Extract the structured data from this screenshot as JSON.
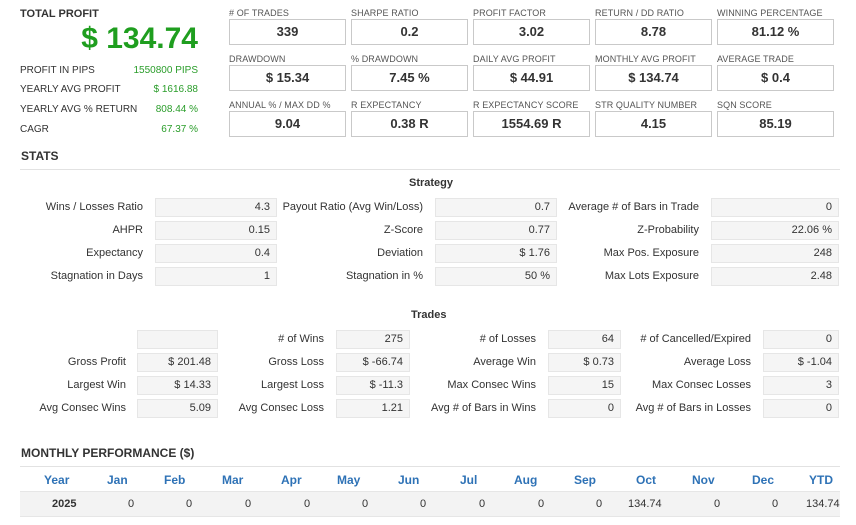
{
  "summary": {
    "title": "TOTAL PROFIT",
    "total": "$ 134.74",
    "rows": [
      {
        "label": "PROFIT IN PIPS",
        "value": "1550800 PIPS"
      },
      {
        "label": "YEARLY AVG PROFIT",
        "value": "$ 1616.88"
      },
      {
        "label": "YEARLY AVG % RETURN",
        "value": "808.44 %"
      },
      {
        "label": "CAGR",
        "value": "67.37 %"
      }
    ]
  },
  "metrics": [
    {
      "label": "# OF TRADES",
      "value": "339"
    },
    {
      "label": "SHARPE RATIO",
      "value": "0.2"
    },
    {
      "label": "PROFIT FACTOR",
      "value": "3.02"
    },
    {
      "label": "RETURN / DD RATIO",
      "value": "8.78"
    },
    {
      "label": "WINNING PERCENTAGE",
      "value": "81.12 %"
    },
    {
      "label": "DRAWDOWN",
      "value": "$ 15.34"
    },
    {
      "label": "% DRAWDOWN",
      "value": "7.45 %"
    },
    {
      "label": "DAILY AVG PROFIT",
      "value": "$ 44.91"
    },
    {
      "label": "MONTHLY AVG PROFIT",
      "value": "$ 134.74"
    },
    {
      "label": "AVERAGE TRADE",
      "value": "$ 0.4"
    },
    {
      "label": "ANNUAL % / MAX DD %",
      "value": "9.04"
    },
    {
      "label": "R EXPECTANCY",
      "value": "0.38 R"
    },
    {
      "label": "R EXPECTANCY SCORE",
      "value": "1554.69 R"
    },
    {
      "label": "STR QUALITY NUMBER",
      "value": "4.15"
    },
    {
      "label": "SQN SCORE",
      "value": "85.19"
    }
  ],
  "stats": {
    "title": "STATS",
    "strategy": {
      "title": "Strategy",
      "col1": [
        {
          "label": "Wins / Losses Ratio",
          "value": "4.3"
        },
        {
          "label": "AHPR",
          "value": "0.15"
        },
        {
          "label": "Expectancy",
          "value": "0.4"
        },
        {
          "label": "Stagnation in Days",
          "value": "1"
        }
      ],
      "col2": [
        {
          "label": "Payout Ratio (Avg Win/Loss)",
          "value": "0.7"
        },
        {
          "label": "Z-Score",
          "value": "0.77"
        },
        {
          "label": "Deviation",
          "value": "$ 1.76"
        },
        {
          "label": "Stagnation in %",
          "value": "50 %"
        }
      ],
      "col3": [
        {
          "label": "Average # of Bars in Trade",
          "value": "0"
        },
        {
          "label": "Z-Probability",
          "value": "22.06 %"
        },
        {
          "label": "Max Pos. Exposure",
          "value": "248"
        },
        {
          "label": "Max Lots Exposure",
          "value": "2.48"
        }
      ]
    },
    "trades": {
      "title": "Trades",
      "col1": [
        {
          "label": "",
          "value": ""
        },
        {
          "label": "Gross Profit",
          "value": "$ 201.48"
        },
        {
          "label": "Largest Win",
          "value": "$ 14.33"
        },
        {
          "label": "Avg Consec Wins",
          "value": "5.09"
        }
      ],
      "col2": [
        {
          "label": "# of Wins",
          "value": "275"
        },
        {
          "label": "Gross Loss",
          "value": "$ -66.74"
        },
        {
          "label": "Largest Loss",
          "value": "$ -11.3"
        },
        {
          "label": "Avg Consec Loss",
          "value": "1.21"
        }
      ],
      "col3": [
        {
          "label": "# of Losses",
          "value": "64"
        },
        {
          "label": "Average Win",
          "value": "$ 0.73"
        },
        {
          "label": "Max Consec Wins",
          "value": "15"
        },
        {
          "label": "Avg # of Bars in Wins",
          "value": "0"
        }
      ],
      "col4": [
        {
          "label": "# of Cancelled/Expired",
          "value": "0"
        },
        {
          "label": "Average Loss",
          "value": "$ -1.04"
        },
        {
          "label": "Max Consec Losses",
          "value": "3"
        },
        {
          "label": "Avg # of Bars in Losses",
          "value": "0"
        }
      ]
    }
  },
  "monthly": {
    "title": "MONTHLY PERFORMANCE ($)",
    "headers": [
      "Year",
      "Jan",
      "Feb",
      "Mar",
      "Apr",
      "May",
      "Jun",
      "Jul",
      "Aug",
      "Sep",
      "Oct",
      "Nov",
      "Dec",
      "YTD"
    ],
    "rows": [
      [
        "2025",
        "0",
        "0",
        "0",
        "0",
        "0",
        "0",
        "0",
        "0",
        "0",
        "134.74",
        "0",
        "0",
        "134.74"
      ]
    ]
  },
  "colors": {
    "profit_green": "#1f9e1f",
    "header_blue": "#2e72b6"
  }
}
